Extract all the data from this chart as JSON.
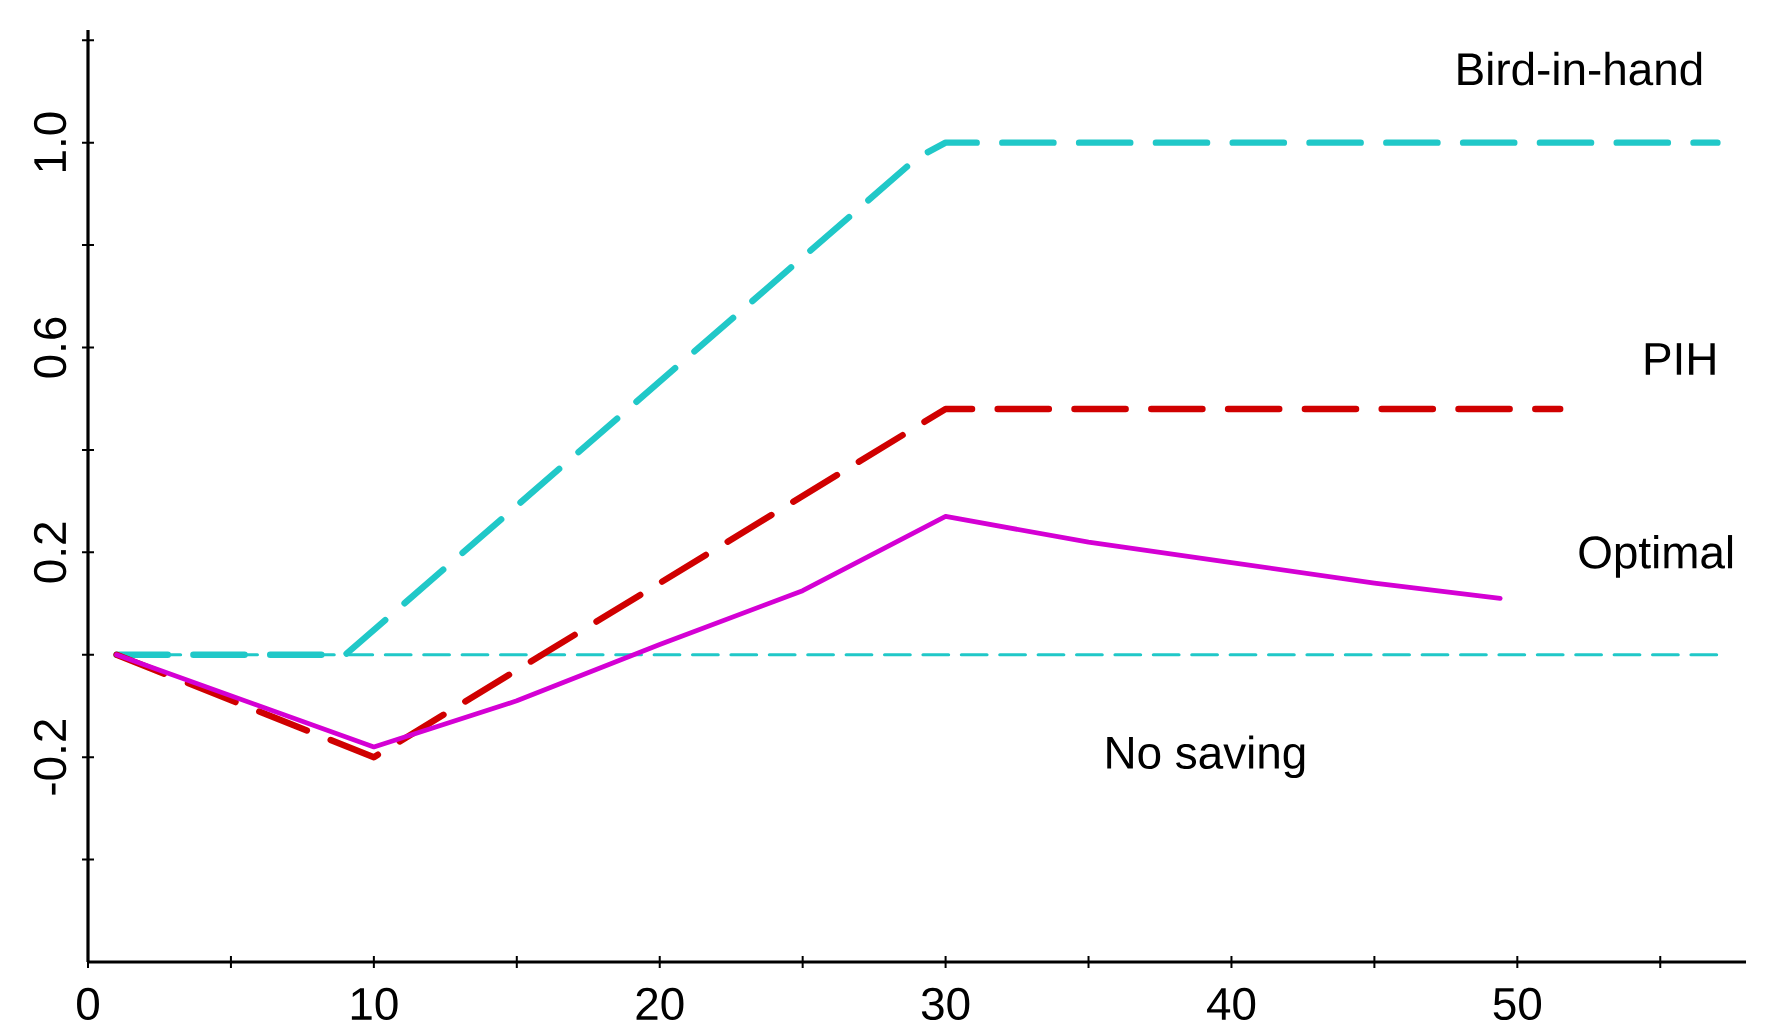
{
  "chart_data": {
    "type": "line",
    "xlim": [
      0,
      58
    ],
    "ylim": [
      -0.6,
      1.22
    ],
    "xticks": [
      0,
      {
        "value": 5,
        "label": null
      },
      10,
      {
        "value": 15,
        "label": null
      },
      20,
      {
        "value": 25,
        "label": null
      },
      30,
      {
        "value": 35,
        "label": null
      },
      40,
      {
        "value": 45,
        "label": null
      },
      50,
      {
        "value": 55,
        "label": null
      }
    ],
    "yticks": [
      {
        "value": -0.4,
        "label": null
      },
      -0.2,
      {
        "value": 0,
        "label": null
      },
      0.2,
      {
        "value": 0.4,
        "label": null
      },
      0.6,
      {
        "value": 0.8,
        "label": null
      },
      {
        "value": 1,
        "label": "1.0"
      },
      {
        "value": 1.2,
        "label": null
      }
    ],
    "series": [
      {
        "name": "No saving",
        "color": "#20c8c8",
        "line_style": "dashed",
        "x": [
          1,
          57
        ],
        "values": [
          0,
          0
        ]
      },
      {
        "name": "Bird-in-hand",
        "color": "#20c8c8",
        "line_style": "dashed",
        "x": [
          1,
          9,
          29,
          30,
          57
        ],
        "values": [
          0,
          0,
          0.97,
          1.0,
          1.0
        ]
      },
      {
        "name": "PIH",
        "color": "#d00000",
        "line_style": "dashed",
        "x": [
          1,
          10,
          30,
          51.5
        ],
        "values": [
          0,
          -0.2,
          0.48,
          0.48
        ]
      },
      {
        "name": "Optimal",
        "color": "#d400d4",
        "line_style": "solid",
        "x": [
          1,
          10,
          15,
          20,
          25,
          30,
          35,
          40,
          45,
          49.4
        ],
        "values": [
          0,
          -0.18,
          -0.09,
          0.02,
          0.125,
          0.27,
          0.22,
          0.18,
          0.14,
          0.11
        ]
      }
    ]
  }
}
